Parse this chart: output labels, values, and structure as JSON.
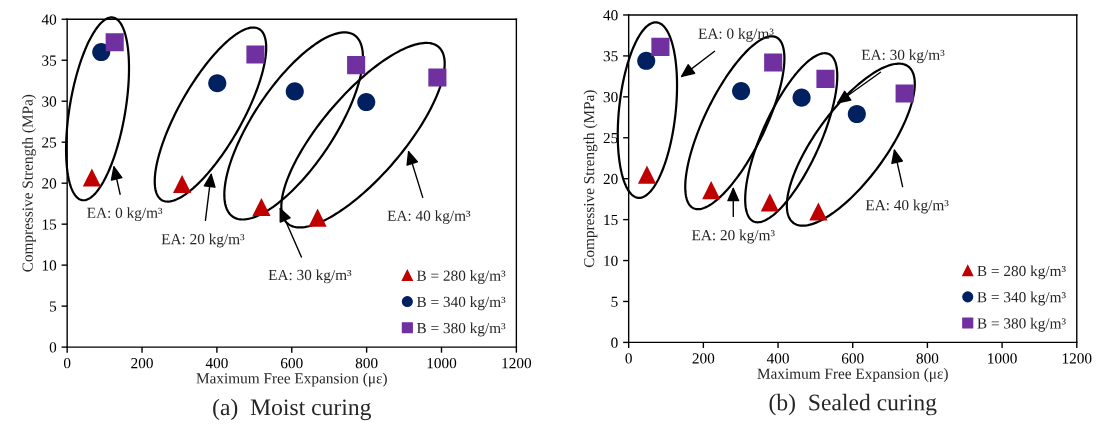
{
  "chart_data": [
    {
      "type": "scatter",
      "title": "(a)  Moist curing",
      "xlabel": "Maximum Free Expansion (με)",
      "ylabel": "Compressive Strength (MPa)",
      "xlim": [
        0,
        1200
      ],
      "ylim": [
        0,
        40
      ],
      "xticks": [
        0,
        200,
        400,
        600,
        800,
        1000,
        1200
      ],
      "yticks": [
        0,
        5,
        10,
        15,
        20,
        25,
        30,
        35,
        40
      ],
      "grid": false,
      "legend": "bottom right",
      "series": [
        {
          "name": "B = 280 kg/m³",
          "color": "#c00000",
          "marker": "triangle",
          "x": [
            66,
            307,
            519,
            669
          ],
          "values": [
            20.7,
            19.9,
            17.1,
            15.8
          ]
        },
        {
          "name": "B = 340 kg/m³",
          "color": "#002060",
          "marker": "circle",
          "x": [
            91,
            401,
            608,
            799
          ],
          "values": [
            36.0,
            32.2,
            31.2,
            29.9
          ]
        },
        {
          "name": "B = 380 kg/m³",
          "color": "#7030a0",
          "marker": "square",
          "x": [
            127,
            503,
            772,
            989
          ],
          "values": [
            37.2,
            35.7,
            34.4,
            32.9
          ]
        }
      ],
      "annotations": [
        "EA: 0 kg/m³",
        "EA: 20 kg/m³",
        "EA: 30 kg/m³",
        "EA: 40 kg/m³"
      ]
    },
    {
      "type": "scatter",
      "title": "(b)  Sealed curing",
      "xlabel": "Maximum Free Expansion (με)",
      "ylabel": "Compressive Strength (MPa)",
      "xlim": [
        0,
        1200
      ],
      "ylim": [
        0,
        40
      ],
      "xticks": [
        0,
        200,
        400,
        600,
        800,
        1000,
        1200
      ],
      "yticks": [
        0,
        5,
        10,
        15,
        20,
        25,
        30,
        35,
        40
      ],
      "grid": false,
      "legend": "bottom right",
      "series": [
        {
          "name": "B = 280 kg/m³",
          "color": "#c00000",
          "marker": "triangle",
          "x": [
            49,
            221,
            378,
            508
          ],
          "values": [
            20.5,
            18.6,
            17.1,
            16.0
          ]
        },
        {
          "name": "B = 340 kg/m³",
          "color": "#002060",
          "marker": "circle",
          "x": [
            47,
            301,
            463,
            611
          ],
          "values": [
            34.4,
            30.7,
            29.9,
            27.9
          ]
        },
        {
          "name": "B = 380 kg/m³",
          "color": "#7030a0",
          "marker": "square",
          "x": [
            85,
            387,
            527,
            739
          ],
          "values": [
            36.1,
            34.2,
            32.2,
            30.4
          ]
        }
      ],
      "annotations": [
        "EA: 0 kg/m³",
        "EA: 20 kg/m³",
        "EA: 30 kg/m³",
        "EA: 40 kg/m³"
      ]
    }
  ]
}
